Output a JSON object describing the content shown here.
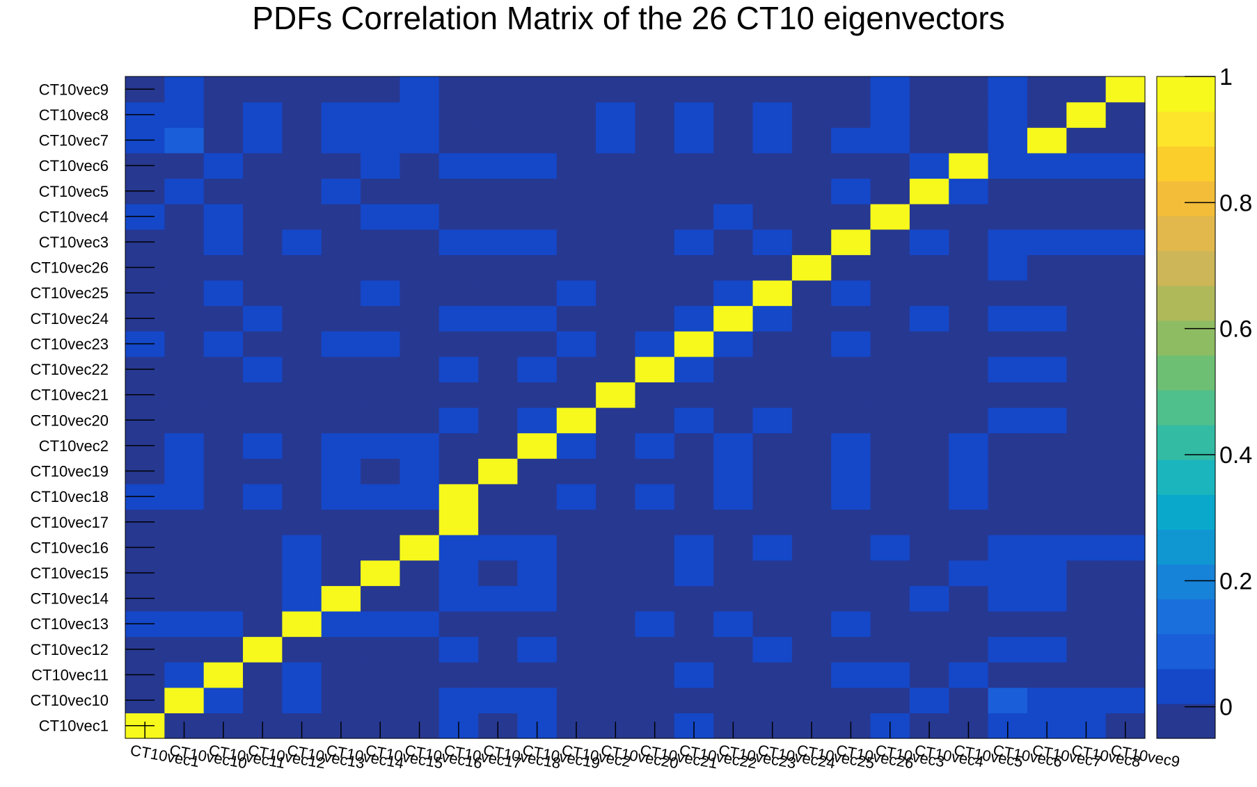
{
  "chart_data": {
    "type": "heatmap",
    "title": "PDFs Correlation Matrix of the 26 CT10 eigenvectors",
    "xlabel": "",
    "ylabel": "",
    "categories": [
      "CT10vec1",
      "CT10vec10",
      "CT10vec11",
      "CT10vec12",
      "CT10vec13",
      "CT10vec14",
      "CT10vec15",
      "CT10vec16",
      "CT10vec17",
      "CT10vec18",
      "CT10vec19",
      "CT10vec2",
      "CT10vec20",
      "CT10vec21",
      "CT10vec22",
      "CT10vec23",
      "CT10vec24",
      "CT10vec25",
      "CT10vec26",
      "CT10vec3",
      "CT10vec4",
      "CT10vec5",
      "CT10vec6",
      "CT10vec7",
      "CT10vec8",
      "CT10vec9"
    ],
    "zlim": [
      -0.05,
      1
    ],
    "colorbar_ticks": [
      "0",
      "0.2",
      "0.4",
      "0.6",
      "0.8",
      "1"
    ],
    "colorbar_tick_values": [
      0,
      0.2,
      0.4,
      0.6,
      0.8,
      1
    ],
    "colormap": [
      "#273891",
      "#1448c9",
      "#1a5ed9",
      "#1a6fdd",
      "#1682d8",
      "#1097d2",
      "#0aa9cc",
      "#1bb5bd",
      "#33bba4",
      "#4fbf8c",
      "#6dbf74",
      "#8ebc63",
      "#b0b95a",
      "#cdb657",
      "#e2b84c",
      "#f3bd3a",
      "#fbce2c",
      "#fde52b",
      "#f6f91b"
    ],
    "diagonal_color": "#f6f91b",
    "values": [
      [
        1,
        0,
        0,
        0,
        0,
        0,
        0,
        0,
        0.05,
        0,
        0.05,
        0,
        0,
        0,
        0.05,
        0,
        0,
        0,
        0,
        0.05,
        0,
        0,
        0.05,
        0.05,
        0.05,
        0
      ],
      [
        0,
        1,
        0.05,
        0,
        0.05,
        0,
        0,
        0,
        0.05,
        0.05,
        0.05,
        0,
        0,
        0,
        0,
        0,
        0,
        0,
        0,
        0,
        0.05,
        0,
        0.1,
        0.05,
        0.05,
        0.05
      ],
      [
        0,
        0.05,
        1,
        0,
        0.05,
        0,
        0,
        0,
        0,
        0,
        0,
        0,
        0,
        0,
        0.05,
        0,
        0,
        0,
        0.05,
        0.05,
        0,
        0.05,
        0,
        0,
        0,
        0
      ],
      [
        0,
        0,
        0,
        1,
        0,
        0,
        0,
        0,
        0.05,
        0,
        0.05,
        0,
        0,
        0,
        0,
        0,
        0.05,
        0,
        0,
        0,
        0,
        0,
        0.05,
        0.05,
        0,
        0
      ],
      [
        0.05,
        0.05,
        0.05,
        0,
        1,
        0.05,
        0.05,
        0.05,
        0,
        0,
        0,
        0,
        0,
        0.05,
        0,
        0.05,
        0,
        0,
        0.05,
        0,
        0,
        0,
        0,
        0,
        0,
        0
      ],
      [
        0,
        0,
        0,
        0,
        0.05,
        1,
        0,
        0,
        0.05,
        0.05,
        0.05,
        0,
        0,
        0,
        0,
        0,
        0,
        0,
        0,
        0,
        0.05,
        0,
        0.05,
        0.05,
        0,
        0
      ],
      [
        0,
        0,
        0,
        0,
        0.05,
        0,
        1,
        0,
        0.05,
        0,
        0.05,
        0,
        0,
        0,
        0.05,
        0,
        0,
        0,
        0,
        0,
        0,
        0.05,
        0.05,
        0.05,
        0,
        0
      ],
      [
        0,
        0,
        0,
        0,
        0.05,
        0,
        0,
        1,
        0.05,
        0.05,
        0.05,
        0,
        0,
        0,
        0.05,
        0,
        0.05,
        0,
        0,
        0.05,
        0,
        0,
        0.05,
        0.05,
        0.05,
        0.05
      ],
      [
        0,
        0,
        0,
        0,
        0,
        0,
        0,
        0,
        1,
        0,
        0,
        0,
        0,
        0,
        0,
        0,
        0,
        0,
        0,
        0,
        0,
        0,
        0,
        0,
        0,
        0
      ],
      [
        0.05,
        0.05,
        0,
        0.05,
        0,
        0.05,
        0.05,
        0.05,
        1,
        0,
        0,
        0.05,
        0,
        0.05,
        0,
        0.05,
        0,
        0,
        0.05,
        0,
        0,
        0.05,
        0,
        0,
        0,
        0
      ],
      [
        0,
        0.05,
        0,
        0,
        0,
        0.05,
        0,
        0.05,
        0,
        1,
        0,
        0,
        0,
        0,
        0,
        0.05,
        0,
        0,
        0.05,
        0,
        0,
        0.05,
        0,
        0,
        0,
        0
      ],
      [
        0,
        0.05,
        0,
        0.05,
        0,
        0.05,
        0.05,
        0.05,
        0,
        0,
        1,
        0.05,
        0,
        0.05,
        0,
        0.05,
        0,
        0,
        0.05,
        0,
        0,
        0.05,
        0,
        0,
        0,
        0
      ],
      [
        0,
        0,
        0,
        0,
        0,
        0,
        0,
        0,
        0.05,
        0,
        0.05,
        1,
        0,
        0,
        0.05,
        0,
        0.05,
        0,
        0,
        0,
        0,
        0,
        0.05,
        0.05,
        0,
        0
      ],
      [
        0,
        0,
        0,
        0,
        0,
        0,
        0,
        0,
        0,
        0,
        0,
        0,
        1,
        0,
        0,
        0,
        0,
        0,
        0,
        0,
        0,
        0,
        0,
        0,
        0,
        0
      ],
      [
        0,
        0,
        0,
        0.05,
        0,
        0,
        0,
        0,
        0.05,
        0,
        0.05,
        0,
        0,
        1,
        0.05,
        0,
        0,
        0,
        0,
        0,
        0,
        0,
        0.05,
        0.05,
        0,
        0
      ],
      [
        0.05,
        0,
        0.05,
        0,
        0,
        0.05,
        0.05,
        0,
        0,
        0,
        0,
        0.05,
        0,
        0.05,
        1,
        0.05,
        0,
        0,
        0.05,
        0,
        0,
        0,
        0,
        0,
        0,
        0
      ],
      [
        0,
        0,
        0,
        0.05,
        0,
        0,
        0,
        0,
        0.05,
        0.05,
        0.05,
        0,
        0,
        0,
        0.05,
        1,
        0.05,
        0,
        0,
        0,
        0.05,
        0,
        0.05,
        0.05,
        0,
        0
      ],
      [
        0,
        0,
        0.05,
        0,
        0,
        0,
        0.05,
        0,
        0,
        0,
        0,
        0.05,
        0,
        0,
        0,
        0.05,
        1,
        0,
        0.05,
        0,
        0,
        0,
        0,
        0,
        0,
        0
      ],
      [
        0,
        0,
        0,
        0,
        0,
        0,
        0,
        0,
        0,
        0,
        0,
        0,
        0,
        0,
        0,
        0,
        0,
        1,
        0,
        0,
        0,
        0,
        0.05,
        0,
        0,
        0
      ],
      [
        0,
        0,
        0.05,
        0,
        0.05,
        0,
        0,
        0,
        0.05,
        0.05,
        0.05,
        0,
        0,
        0,
        0.05,
        0,
        0.05,
        0,
        1,
        0,
        0.05,
        0,
        0.05,
        0.05,
        0.05,
        0.05
      ],
      [
        0.05,
        0,
        0.05,
        0,
        0,
        0,
        0.05,
        0.05,
        0,
        0,
        0,
        0,
        0,
        0,
        0,
        0.05,
        0,
        0,
        0,
        1,
        0,
        0,
        0,
        0,
        0,
        0
      ],
      [
        0,
        0.05,
        0,
        0,
        0,
        0.05,
        0,
        0,
        0,
        0,
        0,
        0,
        0,
        0,
        0,
        0,
        0,
        0,
        0.05,
        0,
        1,
        0.05,
        0,
        0,
        0,
        0
      ],
      [
        0,
        0,
        0.05,
        0,
        0,
        0,
        0.05,
        0,
        0.05,
        0.05,
        0.05,
        0,
        0,
        0,
        0,
        0,
        0,
        0,
        0,
        0,
        0.05,
        1,
        0.05,
        0.05,
        0.05,
        0.05
      ],
      [
        0.05,
        0.1,
        0,
        0.05,
        0,
        0.05,
        0.05,
        0.05,
        0,
        0,
        0,
        0,
        0.05,
        0,
        0.05,
        0,
        0.05,
        0,
        0.05,
        0.05,
        0,
        0,
        0.05,
        1,
        0,
        0
      ],
      [
        0.05,
        0.05,
        0,
        0.05,
        0,
        0.05,
        0.05,
        0.05,
        0,
        0,
        0,
        0,
        0.05,
        0,
        0.05,
        0,
        0.05,
        0,
        0,
        0.05,
        0,
        0,
        0.05,
        0,
        1,
        0
      ],
      [
        0,
        0.05,
        0,
        0,
        0,
        0,
        0,
        0.05,
        0,
        0,
        0,
        0,
        0,
        0,
        0,
        0,
        0,
        0,
        0,
        0.05,
        0,
        0,
        0.05,
        0,
        0,
        1
      ]
    ]
  }
}
